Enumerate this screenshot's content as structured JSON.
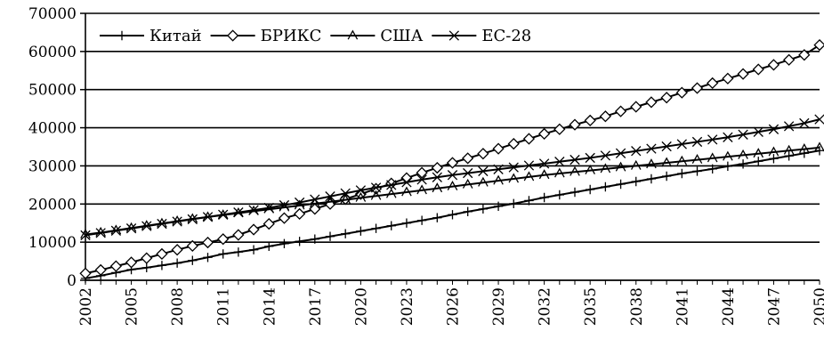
{
  "chart_data": {
    "type": "line",
    "title": "",
    "xlabel": "",
    "ylabel": "",
    "x_start": 2002,
    "x_end": 2050,
    "x_tick_labels": [
      "2002",
      "2005",
      "2008",
      "2011",
      "2014",
      "2017",
      "2020",
      "2023",
      "2026",
      "2029",
      "2032",
      "2035",
      "2038",
      "2041",
      "2044",
      "2047",
      "2050"
    ],
    "ylim": [
      0,
      70000
    ],
    "y_tick_labels": [
      "0",
      "10000",
      "20000",
      "30000",
      "40000",
      "50000",
      "60000",
      "70000"
    ],
    "grid": "horizontal",
    "legend_position": "top-left",
    "series": [
      {
        "name": "Китай",
        "marker": "plus",
        "values": [
          500,
          1200,
          2000,
          2800,
          3300,
          3900,
          4500,
          5200,
          6000,
          6900,
          7400,
          8000,
          8900,
          9600,
          10200,
          10800,
          11500,
          12200,
          12900,
          13600,
          14300,
          15000,
          15700,
          16400,
          17200,
          18000,
          18700,
          19400,
          20100,
          20900,
          21700,
          22400,
          23100,
          23800,
          24500,
          25200,
          25900,
          26600,
          27300,
          28000,
          28600,
          29200,
          29900,
          30500,
          31200,
          31900,
          32600,
          33300,
          34000
        ]
      },
      {
        "name": "БРИКС",
        "marker": "diamond",
        "values": [
          1800,
          2700,
          3700,
          4700,
          5800,
          6900,
          8000,
          9000,
          9900,
          10800,
          11900,
          13300,
          14800,
          16300,
          17400,
          18700,
          20000,
          21300,
          22600,
          24000,
          25400,
          26800,
          28200,
          29500,
          30800,
          32000,
          33200,
          34500,
          35800,
          37100,
          38400,
          39600,
          40800,
          41900,
          43000,
          44300,
          45500,
          46700,
          47900,
          49200,
          50400,
          51700,
          52900,
          54100,
          55300,
          56500,
          57800,
          59100,
          61700
        ]
      },
      {
        "name": "США",
        "marker": "triangle",
        "values": [
          12000,
          12500,
          13100,
          13700,
          14300,
          14900,
          15500,
          16100,
          16600,
          17100,
          17600,
          18100,
          18600,
          19100,
          19600,
          20100,
          20600,
          21100,
          21600,
          22100,
          22600,
          23100,
          23600,
          24100,
          24600,
          25100,
          25600,
          26100,
          26600,
          27100,
          27600,
          28000,
          28400,
          28800,
          29200,
          29600,
          30000,
          30400,
          30800,
          31200,
          31600,
          32000,
          32400,
          32800,
          33200,
          33600,
          34000,
          34400,
          34800
        ]
      },
      {
        "name": "ЕС-28",
        "marker": "cross",
        "values": [
          11800,
          12400,
          13000,
          13600,
          14200,
          14800,
          15400,
          16000,
          16600,
          17200,
          17800,
          18400,
          19000,
          19700,
          20400,
          21200,
          22000,
          22800,
          23600,
          24300,
          25000,
          25700,
          26400,
          27000,
          27600,
          28100,
          28600,
          29100,
          29600,
          30100,
          30600,
          31100,
          31600,
          32100,
          32700,
          33300,
          33900,
          34500,
          35100,
          35700,
          36300,
          36900,
          37500,
          38200,
          38900,
          39600,
          40400,
          41200,
          42200
        ]
      }
    ]
  }
}
